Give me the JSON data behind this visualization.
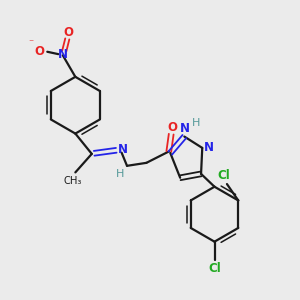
{
  "background_color": "#ebebeb",
  "bond_color": "#1a1a1a",
  "nitrogen_color": "#2424e8",
  "oxygen_color": "#e82424",
  "chlorine_color": "#22aa22",
  "hydrogen_color": "#559999",
  "figsize": [
    3.0,
    3.0
  ],
  "dpi": 100,
  "xlim": [
    0,
    10
  ],
  "ylim": [
    0,
    10
  ]
}
